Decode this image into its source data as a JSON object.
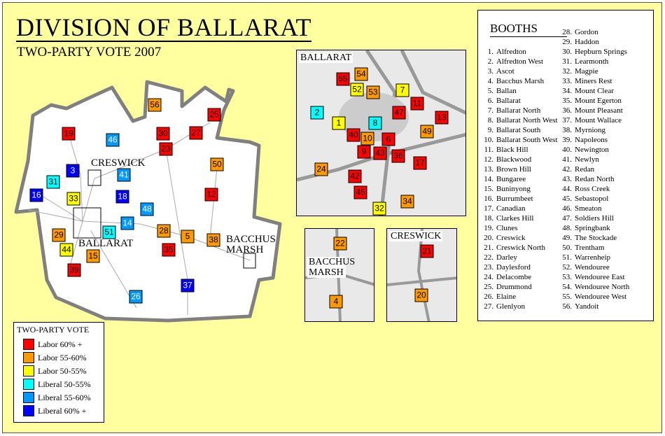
{
  "title": "DIVISION OF BALLARAT",
  "subtitle": "TWO-PARTY VOTE 2007",
  "map_labels": {
    "creswick": "CRESWICK",
    "ballarat": "BALLARAT",
    "bacchus_marsh": "BACCHUS MARSH"
  },
  "insets": {
    "ballarat": "BALLARAT",
    "bacchus_marsh": "BACCHUS MARSH",
    "creswick": "CRESWICK"
  },
  "legend": {
    "title": "TWO-PARTY VOTE",
    "items": [
      {
        "key": "L60",
        "label": "Labor 60% +",
        "color": "#FF0000"
      },
      {
        "key": "L55",
        "label": "Labor 55-60%",
        "color": "#FF9900"
      },
      {
        "key": "L50",
        "label": "Labor 50-55%",
        "color": "#FFFF00"
      },
      {
        "key": "C50",
        "label": "Liberal 50-55%",
        "color": "#00FFFF"
      },
      {
        "key": "C55",
        "label": "Liberal 55-60%",
        "color": "#0099FF"
      },
      {
        "key": "C60",
        "label": "Liberal 60% +",
        "color": "#0000FF"
      }
    ]
  },
  "booths_title": "BOOTHS",
  "booths": [
    "Alfredton",
    "Alfredton West",
    "Ascot",
    "Bacchus Marsh",
    "Ballan",
    "Ballarat",
    "Ballarat North",
    "Ballarat North West",
    "Ballarat South",
    "Ballarat South West",
    "Black Hill",
    "Blackwood",
    "Brown Hill",
    "Bungaree",
    "Buninyong",
    "Burrumbeet",
    "Canadian",
    "Clarkes Hill",
    "Clunes",
    "Creswick",
    "Creswick North",
    "Darley",
    "Daylesford",
    "Delacombe",
    "Drummond",
    "Elaine",
    "Glenlyon",
    "Gordon",
    "Haddon",
    "Hepburn Springs",
    "Learmonth",
    "Magpie",
    "Miners Rest",
    "Mount Clear",
    "Mount Egerton",
    "Mount Pleasant",
    "Mount Wallace",
    "Myrniong",
    "Napoleons",
    "Newington",
    "Newlyn",
    "Redan",
    "Redan North",
    "Ross Creek",
    "Sebastopol",
    "Smeaton",
    "Soldiers Hill",
    "Springbank",
    "The Stockade",
    "Trentham",
    "Warrenheip",
    "Wendouree",
    "Wendouree East",
    "Wendouree North",
    "Wendouree West",
    "Yandoit"
  ],
  "booth_results": {
    "1": "L50",
    "2": "C50",
    "3": "C60",
    "4": "L55",
    "5": "L55",
    "6": "L60",
    "7": "L50",
    "8": "C50",
    "9": "L60",
    "10": "L55",
    "11": "L60",
    "12": "L60",
    "13": "L60",
    "14": "C55",
    "15": "L55",
    "16": "C60",
    "17": "L60",
    "18": "C60",
    "19": "L60",
    "20": "L55",
    "21": "L60",
    "22": "L55",
    "23": "L60",
    "24": "L55",
    "25": "L60",
    "26": "C55",
    "27": "L60",
    "28": "L55",
    "29": "L55",
    "30": "L60",
    "31": "C50",
    "32": "L50",
    "33": "L50",
    "34": "L55",
    "35": "L60",
    "36": "L60",
    "37": "C60",
    "38": "L55",
    "39": "L60",
    "40": "L60",
    "41": "C55",
    "42": "L60",
    "43": "L60",
    "44": "L50",
    "45": "L60",
    "46": "C55",
    "47": "L60",
    "48": "C55",
    "49": "L55",
    "50": "L55",
    "51": "C50",
    "52": "L50",
    "53": "L55",
    "54": "L55",
    "55": "L60",
    "56": "L55"
  }
}
